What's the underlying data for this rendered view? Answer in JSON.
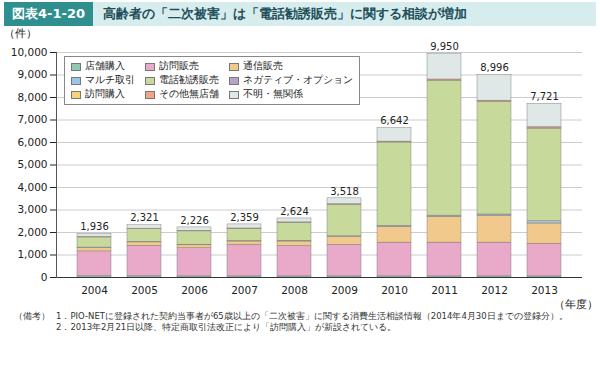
{
  "chart_data": {
    "type": "bar",
    "stacked": true,
    "figure_label": "図表4-1-20",
    "title": "高齢者の「二次被害」は「電話勧誘販売」に関する相談が増加",
    "y_label": "（件）",
    "x_label": "（年度）",
    "categories": [
      "2004",
      "2005",
      "2006",
      "2007",
      "2008",
      "2009",
      "2010",
      "2011",
      "2012",
      "2013"
    ],
    "series": [
      {
        "name": "店舗購入",
        "color": "#8fc9b0",
        "values": [
          60,
          60,
          50,
          50,
          50,
          50,
          50,
          50,
          50,
          50
        ]
      },
      {
        "name": "訪問販売",
        "color": "#e9a9c9",
        "values": [
          1100,
          1350,
          1250,
          1400,
          1350,
          1400,
          1500,
          1500,
          1500,
          1450
        ]
      },
      {
        "name": "通信販売",
        "color": "#f2c98c",
        "values": [
          150,
          150,
          130,
          150,
          200,
          350,
          700,
          1150,
          1200,
          900
        ]
      },
      {
        "name": "マルチ取引",
        "color": "#9fc3e6",
        "values": [
          20,
          20,
          20,
          20,
          30,
          30,
          50,
          50,
          50,
          100
        ]
      },
      {
        "name": "電話勧誘販売",
        "color": "#c8d99c",
        "values": [
          450,
          570,
          600,
          540,
          800,
          1400,
          3700,
          6000,
          5000,
          4100
        ]
      },
      {
        "name": "ネガティブ・オプション",
        "color": "#b6a2cd",
        "values": [
          0,
          0,
          0,
          0,
          0,
          0,
          0,
          0,
          0,
          0
        ]
      },
      {
        "name": "訪問購入",
        "color": "#f6d27a",
        "values": [
          0,
          0,
          0,
          0,
          0,
          0,
          0,
          0,
          0,
          30
        ]
      },
      {
        "name": "その他無店舗",
        "color": "#f2a585",
        "values": [
          20,
          20,
          20,
          20,
          20,
          30,
          40,
          50,
          60,
          50
        ]
      },
      {
        "name": "不明・無関係",
        "color": "#dfe7e7",
        "values": [
          136,
          151,
          156,
          179,
          174,
          258,
          602,
          1150,
          1136,
          1041
        ]
      }
    ],
    "totals": [
      1936,
      2321,
      2226,
      2359,
      2624,
      3518,
      6642,
      9950,
      8996,
      7721
    ],
    "total_labels": [
      "1,936",
      "2,321",
      "2,226",
      "2,359",
      "2,624",
      "3,518",
      "6,642",
      "9,950",
      "8,996",
      "7,721"
    ],
    "ylim": [
      0,
      10000
    ],
    "yticks": [
      0,
      {
        "value": 1000,
        "label": "1,000"
      },
      {
        "value": 2000,
        "label": "2,000"
      },
      {
        "value": 3000,
        "label": "3,000"
      },
      {
        "value": 4000,
        "label": "4,000"
      },
      {
        "value": 5000,
        "label": "5,000"
      },
      {
        "value": 6000,
        "label": "6,000"
      },
      {
        "value": 7000,
        "label": "7,000"
      },
      {
        "value": 8000,
        "label": "8,000"
      },
      {
        "value": 9000,
        "label": "9,000"
      },
      {
        "value": 10000,
        "label": "10,000"
      }
    ],
    "grid": true,
    "legend": "top-left",
    "notes": {
      "heading": "（備考）",
      "items": [
        "1．PIO-NETに登録された契約当事者が65歳以上の「二次被害」に関する消費生活相談情報（2014年4月30日までの登録分）。",
        "2．2013年2月21日以降、特定商取引法改正により「訪問購入」が新設されている。"
      ]
    }
  }
}
